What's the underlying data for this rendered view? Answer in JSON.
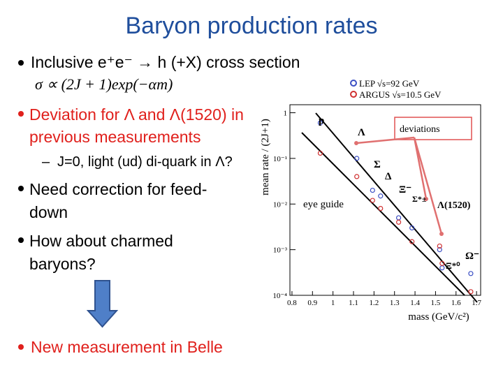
{
  "header": {
    "title": "Baryon production rates"
  },
  "bullets": [
    {
      "text": "Inclusive e⁺e⁻ → h (+X) cross section",
      "formula": "σ ∝ (2J + 1)exp(−αm)"
    },
    {
      "text": "Deviation for Λ and Λ(1520) in previous measurements",
      "sub": "J=0, light (ud) di-quark in Λ?"
    },
    {
      "text": "Need correction for feed-down"
    },
    {
      "text": "How about charmed baryons?"
    },
    {
      "text": "New measurement in Belle"
    }
  ],
  "chart_data": {
    "type": "scatter",
    "xlabel": "mass (GeV/c²)",
    "ylabel": "mean rate / (2J+1)",
    "log_y": true,
    "x": [
      0.938,
      1.116,
      1.193,
      1.232,
      1.32,
      1.385,
      1.52,
      1.532,
      1.672
    ],
    "series": [
      {
        "name": "LEP √s=92 GeV",
        "color": "#3b4fc4",
        "values": [
          0.6,
          0.1,
          0.02,
          0.015,
          0.005,
          0.003,
          0.001,
          0.0004,
          0.0003
        ]
      },
      {
        "name": "ARGUS √s=10.5 GeV",
        "color": "#d03030",
        "values": [
          0.13,
          0.04,
          0.012,
          0.008,
          0.004,
          0.0015,
          0.0012,
          0.0005,
          0.00012
        ]
      }
    ],
    "xlim": [
      0.79,
      1.72
    ],
    "xticks": [
      0.8,
      0.9,
      1,
      1.1,
      1.2,
      1.3,
      1.4,
      1.5,
      1.6,
      1.7
    ],
    "ylim": [
      0.0001,
      1.5
    ],
    "yticks": [
      {
        "value": 1,
        "label": "1"
      },
      {
        "value": 0.1,
        "label": "10⁻¹"
      },
      {
        "value": 0.01,
        "label": "10⁻²"
      },
      {
        "value": 0.001,
        "label": "10⁻³"
      },
      {
        "value": 0.0001,
        "label": "10⁻⁴"
      }
    ],
    "annotations": [
      "p",
      "Λ",
      "Σ",
      "Δ",
      "Ξ⁻",
      "Σ*±",
      "Λ(1520)",
      "Ω⁻",
      "Ξ*⁰",
      "deviations",
      "eye guide"
    ]
  }
}
